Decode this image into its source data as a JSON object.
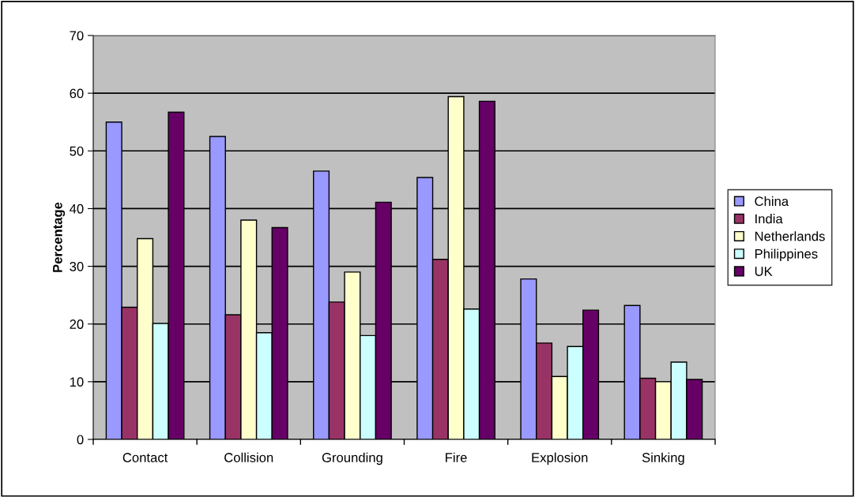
{
  "chart_data": {
    "type": "bar",
    "ylabel": "Percentage",
    "categories": [
      "Contact",
      "Collision",
      "Grounding",
      "Fire",
      "Explosion",
      "Sinking"
    ],
    "series": [
      {
        "name": "China",
        "color": "#9999ff",
        "values": [
          55.0,
          52.5,
          46.5,
          45.4,
          27.8,
          23.2
        ]
      },
      {
        "name": "India",
        "color": "#993366",
        "values": [
          22.9,
          21.6,
          23.8,
          31.2,
          16.7,
          10.6
        ]
      },
      {
        "name": "Netherlands",
        "color": "#ffffcc",
        "values": [
          34.8,
          38.0,
          29.0,
          59.4,
          10.9,
          10.0
        ]
      },
      {
        "name": "Philippines",
        "color": "#ccffff",
        "values": [
          20.1,
          18.5,
          18.0,
          22.6,
          16.1,
          13.4
        ]
      },
      {
        "name": "UK",
        "color": "#660066",
        "values": [
          56.7,
          36.7,
          41.1,
          58.6,
          22.4,
          10.4
        ]
      }
    ],
    "ylim": [
      0,
      70
    ],
    "yticks": [
      0,
      10,
      20,
      30,
      40,
      50,
      60,
      70
    ],
    "grid": "y",
    "legend": "right"
  }
}
